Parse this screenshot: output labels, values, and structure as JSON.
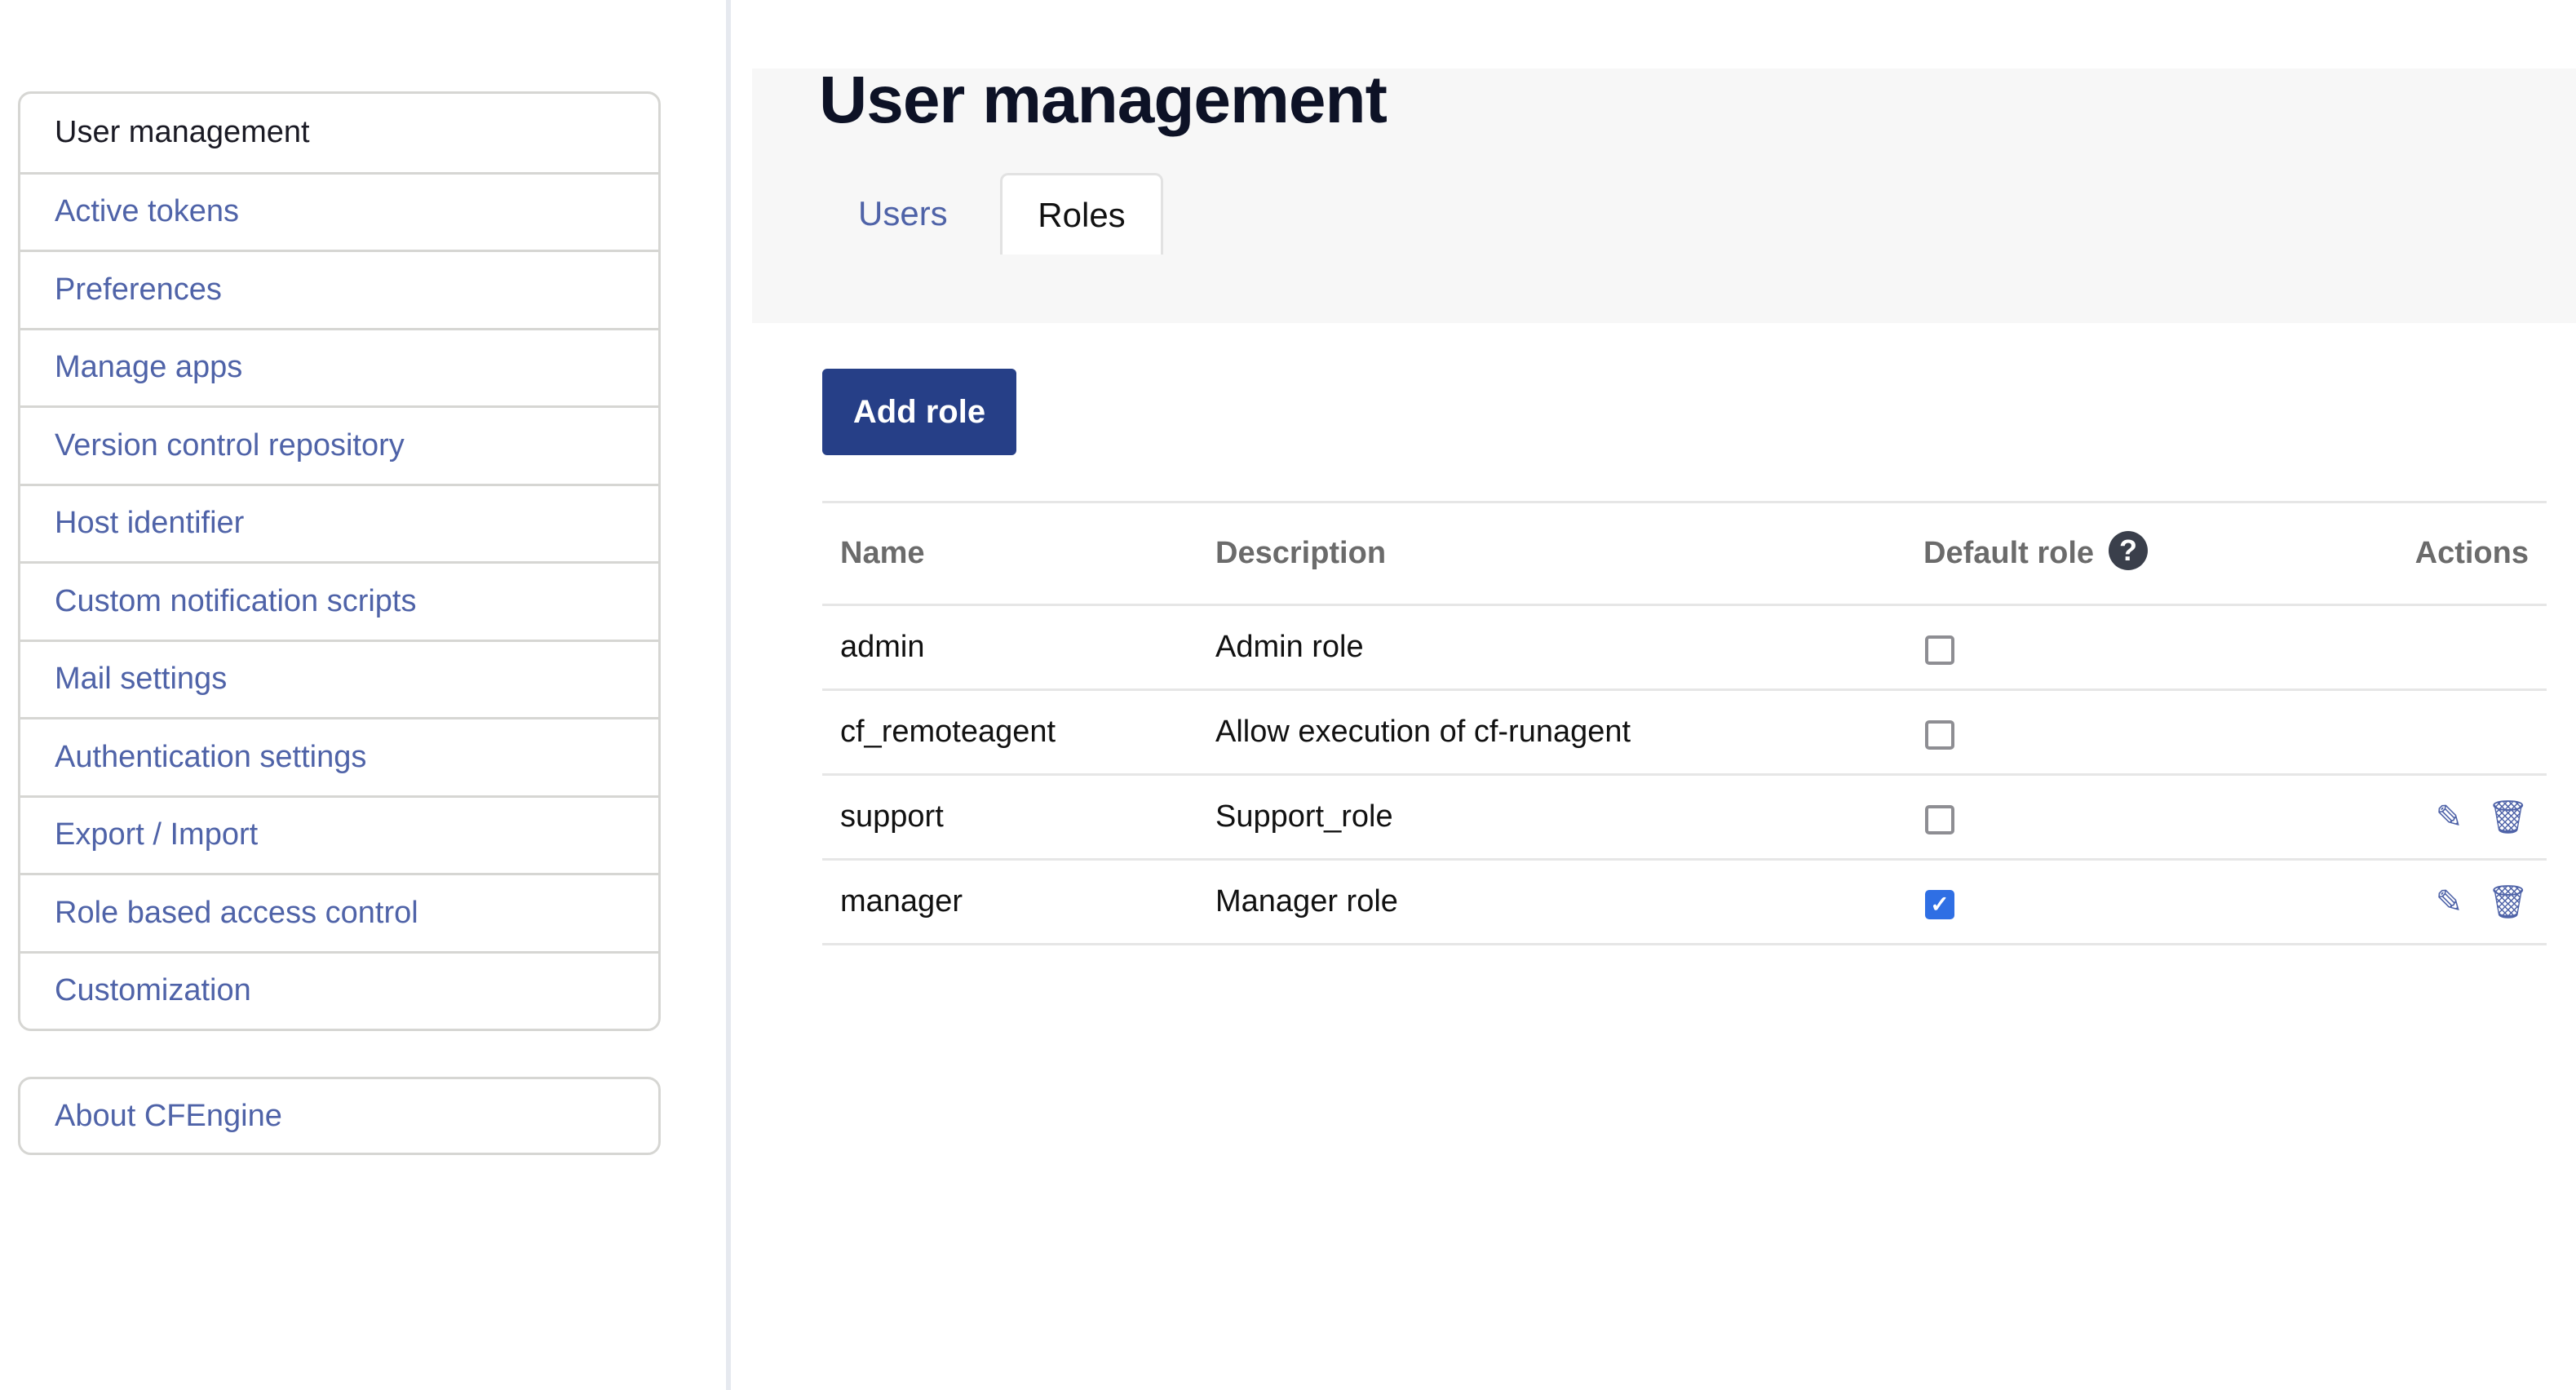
{
  "sidebar": {
    "items": [
      {
        "label": "User management",
        "active": true
      },
      {
        "label": "Active tokens"
      },
      {
        "label": "Preferences"
      },
      {
        "label": "Manage apps"
      },
      {
        "label": "Version control repository"
      },
      {
        "label": "Host identifier"
      },
      {
        "label": "Custom notification scripts"
      },
      {
        "label": "Mail settings"
      },
      {
        "label": "Authentication settings"
      },
      {
        "label": "Export / Import"
      },
      {
        "label": "Role based access control"
      },
      {
        "label": "Customization"
      }
    ],
    "about": "About CFEngine"
  },
  "header": {
    "title": "User management",
    "tabs": [
      {
        "label": "Users"
      },
      {
        "label": "Roles",
        "active": true
      }
    ]
  },
  "main": {
    "add_role": "Add role",
    "columns": [
      "Name",
      "Description",
      "Default role",
      "Actions"
    ],
    "help_icon": "question-circle-icon",
    "rows": [
      {
        "name": "admin",
        "description": "Admin role",
        "default": false,
        "actions": false
      },
      {
        "name": "cf_remoteagent",
        "description": "Allow execution of cf-runagent",
        "default": false,
        "actions": false
      },
      {
        "name": "support",
        "description": "Support_role",
        "default": false,
        "actions": true
      },
      {
        "name": "manager",
        "description": "Manager role",
        "default": true,
        "actions": true
      }
    ]
  },
  "colors": {
    "accent": "#263f87",
    "link": "#4f63a8",
    "checkbox": "#2f6fe4"
  }
}
